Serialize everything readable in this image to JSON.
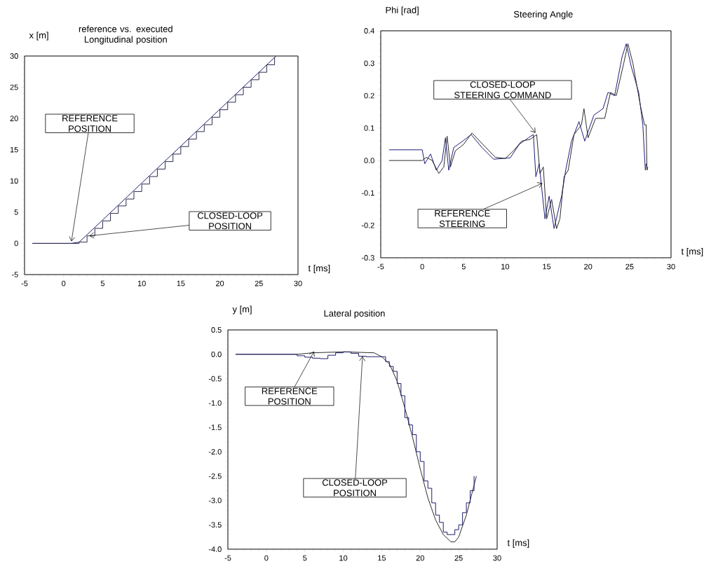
{
  "chart_data": [
    {
      "type": "line",
      "title": "reference vs. executed Longitudinal position",
      "xlabel": "t [ms]",
      "ylabel": "x [m]",
      "xlim": [
        -5,
        30
      ],
      "ylim": [
        -5,
        30
      ],
      "xticks": [
        -5,
        0,
        5,
        10,
        15,
        20,
        25,
        30
      ],
      "yticks": [
        -5,
        0,
        5,
        10,
        15,
        20,
        25,
        30
      ],
      "series": [
        {
          "color": "#1c1c6b",
          "x": [
            -4,
            1,
            2,
            27.2
          ],
          "values": [
            0,
            0,
            0.2,
            30
          ]
        },
        {
          "type": "step",
          "color": "#2b2b4b",
          "x": [
            -4,
            1,
            2,
            3,
            4,
            5,
            6,
            7,
            8,
            9,
            10,
            11,
            12,
            13,
            14,
            15,
            16,
            17,
            18,
            19,
            20,
            21,
            22,
            23,
            24,
            25,
            26,
            27
          ],
          "values": [
            0,
            0,
            0.2,
            1.2,
            2.4,
            3.6,
            4.8,
            6.0,
            7.1,
            8.3,
            9.5,
            10.7,
            11.9,
            13.1,
            14.3,
            15.5,
            16.7,
            17.9,
            19.0,
            20.2,
            21.4,
            22.6,
            23.8,
            25.0,
            26.2,
            27.4,
            28.6,
            29.8
          ]
        }
      ],
      "annotations": [
        {
          "text": "REFERENCE POSITION",
          "x": 1,
          "y": 0.3
        },
        {
          "text": "CLOSED-LOOP POSITION",
          "x": 3.3,
          "y": 1.2
        }
      ]
    },
    {
      "type": "line",
      "title": "Steering Angle",
      "xlabel": "t [ms]",
      "ylabel": "Phi  [rad]",
      "xlim": [
        -5,
        30
      ],
      "ylim": [
        -0.3,
        0.4
      ],
      "xticks": [
        -5,
        0,
        5,
        10,
        15,
        20,
        25,
        30
      ],
      "yticks": [
        -0.3,
        -0.2,
        -0.1,
        {
          "value": 0,
          "label": "0.0"
        },
        0.1,
        0.2,
        0.3,
        0.4
      ],
      "series": [
        {
          "color": "#1c1c7b",
          "x": [
            -4,
            0,
            0.3,
            1,
            1.7,
            2.4,
            2.8,
            3.2,
            3.8,
            4.9,
            5.9,
            7.2,
            8.6,
            10.6,
            11.7,
            12.8,
            13.4,
            13.7,
            14.1,
            14.8,
            15.3,
            15.9,
            16.8,
            17.3,
            18.0,
            18.9,
            19.6,
            20.7,
            21.8,
            22.4,
            23.2,
            24.1,
            24.6,
            25.2,
            26.1,
            26.6,
            26.9,
            27.0
          ],
          "values": [
            0.033,
            0.033,
            -0.01,
            0.02,
            -0.03,
            0.0,
            0.07,
            -0.03,
            0.04,
            0.06,
            0.08,
            0.04,
            0.004,
            0.008,
            0.05,
            0.07,
            0.08,
            -0.05,
            -0.01,
            -0.18,
            -0.11,
            -0.21,
            -0.11,
            -0.03,
            0.06,
            0.12,
            0.06,
            0.14,
            0.16,
            0.21,
            0.2,
            0.32,
            0.36,
            0.29,
            0.21,
            0.11,
            -0.03,
            -0.01
          ]
        },
        {
          "color": "#2b2b2b",
          "x": [
            -4,
            0,
            0.5,
            1.2,
            2,
            2.6,
            3.0,
            3.4,
            4.0,
            5.0,
            6.0,
            7.3,
            8.8,
            10.0,
            11.0,
            12.0,
            13.0,
            13.8,
            14.2,
            14.6,
            15.0,
            15.6,
            16.2,
            16.6,
            17.1,
            17.6,
            18.3,
            19.2,
            19.5,
            20.0,
            20.9,
            22.0,
            22.7,
            23.4,
            24.3,
            24.8,
            25.4,
            26.3,
            26.8,
            27.0,
            27.1,
            27.2
          ],
          "values": [
            0,
            0,
            0.01,
            0.0,
            -0.04,
            -0.02,
            0.075,
            -0.02,
            0.03,
            0.05,
            0.085,
            0.05,
            0.01,
            0.006,
            0.03,
            0.06,
            0.065,
            0.08,
            -0.04,
            -0.02,
            -0.18,
            -0.12,
            -0.21,
            -0.18,
            -0.05,
            -0.03,
            0.08,
            0.11,
            0.16,
            0.07,
            0.13,
            0.13,
            0.21,
            0.2,
            0.3,
            0.36,
            0.3,
            0.17,
            0.11,
            0.11,
            -0.03,
            -0.02
          ]
        }
      ],
      "annotations": [
        {
          "text": "CLOSED-LOOP STEERING COMMAND",
          "x": 13.65,
          "y": 0.085
        },
        {
          "text": "REFERENCE STEERING",
          "x": 14.5,
          "y": -0.07
        }
      ]
    },
    {
      "type": "line",
      "title": "Lateral position",
      "xlabel": "t [ms]",
      "ylabel": "y [m]",
      "xlim": [
        -5,
        30
      ],
      "ylim": [
        -4,
        0.5
      ],
      "xticks": [
        -5,
        0,
        5,
        10,
        15,
        20,
        25,
        30
      ],
      "yticks": [
        {
          "value": -4,
          "label": "-4.0"
        },
        -3.5,
        {
          "value": -3,
          "label": "-3.0"
        },
        -2.5,
        {
          "value": -2,
          "label": "-2.0"
        },
        -1.5,
        {
          "value": -1,
          "label": "-1.0"
        },
        -0.5,
        {
          "value": 0,
          "label": "0.0"
        },
        0.5
      ],
      "series": [
        {
          "color": "#2b2b2b",
          "x": [
            -4,
            2,
            4,
            6,
            10,
            14,
            15,
            16,
            17,
            18,
            19,
            20,
            21,
            22,
            23,
            24,
            24.5,
            25,
            26,
            27.3
          ],
          "values": [
            0,
            0,
            0,
            0.03,
            0.05,
            0.03,
            -0.05,
            -0.2,
            -0.55,
            -1.1,
            -1.7,
            -2.35,
            -2.95,
            -3.4,
            -3.7,
            -3.85,
            -3.85,
            -3.75,
            -3.3,
            -2.5
          ]
        },
        {
          "type": "step",
          "color": "#1c1c6b",
          "x": [
            -4,
            2,
            4,
            5,
            6,
            7,
            8,
            9,
            10,
            11,
            12,
            13,
            14,
            15,
            15.5,
            16,
            16.5,
            17,
            17.5,
            18,
            18.5,
            19,
            19.5,
            20,
            20.5,
            21,
            21.5,
            22,
            22.5,
            23,
            23.5,
            24,
            24.5,
            25,
            25.5,
            26,
            26.5,
            27
          ],
          "values": [
            0,
            0,
            -0.03,
            -0.06,
            -0.08,
            -0.09,
            -0.02,
            0.03,
            0.05,
            0.02,
            -0.04,
            -0.05,
            -0.05,
            -0.05,
            -0.15,
            -0.25,
            -0.35,
            -0.6,
            -0.85,
            -1.3,
            -1.45,
            -1.65,
            -2.0,
            -2.2,
            -2.6,
            -2.75,
            -3.05,
            -3.3,
            -3.45,
            -3.65,
            -3.7,
            -3.7,
            -3.6,
            -3.5,
            -3.25,
            -3.05,
            -2.8,
            -2.5
          ]
        }
      ],
      "annotations": [
        {
          "text": "REFERENCE POSITION",
          "x": 6.2,
          "y": 0.06
        },
        {
          "text": "CLOSED-LOOP POSITION",
          "x": 12.5,
          "y": -0.04
        }
      ]
    }
  ]
}
